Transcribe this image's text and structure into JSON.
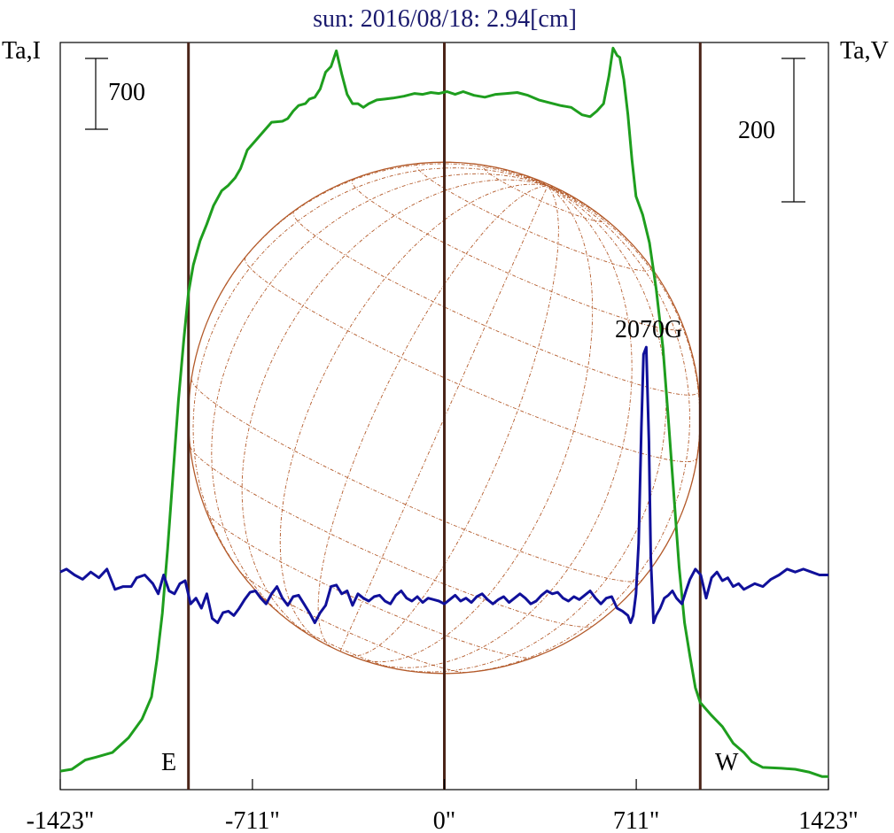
{
  "chart_data": {
    "type": "line",
    "title": "sun: 2016/08/18: 2.94[cm]",
    "left_axis_label": "Ta,I",
    "right_axis_label": "Ta,V",
    "left_scale_bar_label": "700",
    "right_scale_bar_label": "200",
    "x_ticks": [
      {
        "value": -1423,
        "label": "-1423\""
      },
      {
        "value": -711,
        "label": "-711\""
      },
      {
        "value": 0,
        "label": "0\""
      },
      {
        "value": 711,
        "label": "711\""
      },
      {
        "value": 1423,
        "label": "1423\""
      }
    ],
    "xlim": [
      -1423,
      1423
    ],
    "limb_lines": [
      -948,
      0,
      948
    ],
    "limb_labels": {
      "east": "E",
      "west": "W"
    },
    "annotation": {
      "text": "2070G",
      "x": 780
    },
    "solar_disk": {
      "radius_arcsec": 948
    },
    "colors": {
      "intensity": "#1e9e1e",
      "polarization": "#10109a",
      "limb_line": "#4a2418",
      "disk": "#b35a2a",
      "title": "#1a1a6e"
    },
    "series": [
      {
        "key": "I",
        "axis": "left",
        "ylim": [
          0,
          4030
        ],
        "points": [
          [
            -1423,
            100
          ],
          [
            -1380,
            110
          ],
          [
            -1330,
            160
          ],
          [
            -1290,
            175
          ],
          [
            -1230,
            200
          ],
          [
            -1170,
            280
          ],
          [
            -1120,
            380
          ],
          [
            -1085,
            500
          ],
          [
            -1065,
            700
          ],
          [
            -1045,
            950
          ],
          [
            -1025,
            1300
          ],
          [
            -1005,
            1700
          ],
          [
            -985,
            2100
          ],
          [
            -965,
            2430
          ],
          [
            -948,
            2680
          ],
          [
            -930,
            2830
          ],
          [
            -905,
            2960
          ],
          [
            -880,
            3050
          ],
          [
            -855,
            3150
          ],
          [
            -825,
            3230
          ],
          [
            -800,
            3260
          ],
          [
            -775,
            3300
          ],
          [
            -755,
            3350
          ],
          [
            -730,
            3450
          ],
          [
            -700,
            3500
          ],
          [
            -670,
            3550
          ],
          [
            -640,
            3600
          ],
          [
            -600,
            3605
          ],
          [
            -580,
            3620
          ],
          [
            -560,
            3660
          ],
          [
            -540,
            3690
          ],
          [
            -515,
            3700
          ],
          [
            -500,
            3725
          ],
          [
            -480,
            3735
          ],
          [
            -460,
            3780
          ],
          [
            -440,
            3870
          ],
          [
            -420,
            3900
          ],
          [
            -400,
            3985
          ],
          [
            -380,
            3860
          ],
          [
            -360,
            3750
          ],
          [
            -340,
            3700
          ],
          [
            -320,
            3700
          ],
          [
            -300,
            3680
          ],
          [
            -280,
            3700
          ],
          [
            -250,
            3720
          ],
          [
            -220,
            3725
          ],
          [
            -190,
            3730
          ],
          [
            -150,
            3740
          ],
          [
            -110,
            3755
          ],
          [
            -80,
            3750
          ],
          [
            -50,
            3760
          ],
          [
            -20,
            3755
          ],
          [
            10,
            3765
          ],
          [
            40,
            3750
          ],
          [
            70,
            3765
          ],
          [
            110,
            3745
          ],
          [
            150,
            3735
          ],
          [
            190,
            3750
          ],
          [
            230,
            3755
          ],
          [
            270,
            3760
          ],
          [
            310,
            3745
          ],
          [
            350,
            3720
          ],
          [
            390,
            3705
          ],
          [
            430,
            3690
          ],
          [
            470,
            3680
          ],
          [
            510,
            3640
          ],
          [
            540,
            3630
          ],
          [
            565,
            3660
          ],
          [
            590,
            3700
          ],
          [
            610,
            3850
          ],
          [
            625,
            4000
          ],
          [
            640,
            3960
          ],
          [
            650,
            3950
          ],
          [
            665,
            3830
          ],
          [
            680,
            3640
          ],
          [
            695,
            3400
          ],
          [
            710,
            3200
          ],
          [
            735,
            3100
          ],
          [
            760,
            2950
          ],
          [
            785,
            2700
          ],
          [
            810,
            2380
          ],
          [
            830,
            2000
          ],
          [
            850,
            1600
          ],
          [
            870,
            1200
          ],
          [
            890,
            900
          ],
          [
            910,
            720
          ],
          [
            930,
            550
          ],
          [
            948,
            470
          ],
          [
            990,
            400
          ],
          [
            1030,
            340
          ],
          [
            1070,
            250
          ],
          [
            1110,
            200
          ],
          [
            1140,
            150
          ],
          [
            1180,
            120
          ],
          [
            1250,
            115
          ],
          [
            1300,
            110
          ],
          [
            1350,
            95
          ],
          [
            1400,
            70
          ],
          [
            1423,
            70
          ]
        ]
      },
      {
        "key": "V",
        "axis": "right",
        "ylim": [
          -140,
          375
        ],
        "points": [
          [
            -1423,
            10
          ],
          [
            -1400,
            12
          ],
          [
            -1370,
            8
          ],
          [
            -1340,
            5
          ],
          [
            -1310,
            10
          ],
          [
            -1280,
            6
          ],
          [
            -1250,
            12
          ],
          [
            -1220,
            -2
          ],
          [
            -1190,
            0
          ],
          [
            -1160,
            0
          ],
          [
            -1140,
            6
          ],
          [
            -1110,
            8
          ],
          [
            -1080,
            2
          ],
          [
            -1060,
            -5
          ],
          [
            -1040,
            8
          ],
          [
            -1020,
            -3
          ],
          [
            -1000,
            -5
          ],
          [
            -980,
            2
          ],
          [
            -960,
            4
          ],
          [
            -940,
            -12
          ],
          [
            -920,
            -8
          ],
          [
            -900,
            -15
          ],
          [
            -880,
            -5
          ],
          [
            -860,
            -22
          ],
          [
            -840,
            -25
          ],
          [
            -820,
            -18
          ],
          [
            -800,
            -17
          ],
          [
            -780,
            -20
          ],
          [
            -760,
            -15
          ],
          [
            -740,
            -9
          ],
          [
            -720,
            -4
          ],
          [
            -700,
            -3
          ],
          [
            -680,
            -8
          ],
          [
            -660,
            -12
          ],
          [
            -640,
            -5
          ],
          [
            -620,
            0
          ],
          [
            -600,
            -8
          ],
          [
            -580,
            -13
          ],
          [
            -560,
            -7
          ],
          [
            -540,
            -6
          ],
          [
            -520,
            -12
          ],
          [
            -500,
            -18
          ],
          [
            -480,
            -25
          ],
          [
            -460,
            -18
          ],
          [
            -440,
            -13
          ],
          [
            -420,
            0
          ],
          [
            -400,
            1
          ],
          [
            -380,
            -5
          ],
          [
            -360,
            -3
          ],
          [
            -340,
            -13
          ],
          [
            -320,
            -5
          ],
          [
            -300,
            -8
          ],
          [
            -280,
            -10
          ],
          [
            -260,
            -7
          ],
          [
            -240,
            -6
          ],
          [
            -220,
            -10
          ],
          [
            -200,
            -12
          ],
          [
            -180,
            -6
          ],
          [
            -160,
            -3
          ],
          [
            -140,
            -8
          ],
          [
            -120,
            -10
          ],
          [
            -100,
            -7
          ],
          [
            -80,
            -11
          ],
          [
            -60,
            -8
          ],
          [
            -40,
            -9
          ],
          [
            -20,
            -10
          ],
          [
            0,
            -12
          ],
          [
            20,
            -9
          ],
          [
            40,
            -6
          ],
          [
            60,
            -10
          ],
          [
            80,
            -8
          ],
          [
            100,
            -11
          ],
          [
            120,
            -7
          ],
          [
            140,
            -5
          ],
          [
            160,
            -9
          ],
          [
            180,
            -12
          ],
          [
            200,
            -9
          ],
          [
            220,
            -7
          ],
          [
            240,
            -11
          ],
          [
            260,
            -8
          ],
          [
            280,
            -5
          ],
          [
            300,
            -8
          ],
          [
            320,
            -12
          ],
          [
            340,
            -10
          ],
          [
            360,
            -6
          ],
          [
            380,
            -3
          ],
          [
            400,
            -5
          ],
          [
            420,
            -4
          ],
          [
            440,
            -8
          ],
          [
            460,
            -10
          ],
          [
            480,
            -7
          ],
          [
            500,
            -9
          ],
          [
            520,
            -6
          ],
          [
            540,
            -3
          ],
          [
            560,
            -8
          ],
          [
            580,
            -12
          ],
          [
            600,
            -8
          ],
          [
            620,
            -7
          ],
          [
            640,
            -15
          ],
          [
            660,
            -17
          ],
          [
            680,
            -20
          ],
          [
            690,
            -25
          ],
          [
            700,
            -20
          ],
          [
            710,
            -5
          ],
          [
            720,
            30
          ],
          [
            730,
            110
          ],
          [
            738,
            160
          ],
          [
            748,
            165
          ],
          [
            758,
            100
          ],
          [
            765,
            20
          ],
          [
            775,
            -25
          ],
          [
            785,
            -20
          ],
          [
            800,
            -15
          ],
          [
            815,
            -8
          ],
          [
            830,
            -6
          ],
          [
            845,
            -3
          ],
          [
            860,
            -8
          ],
          [
            880,
            -12
          ],
          [
            895,
            -3
          ],
          [
            910,
            5
          ],
          [
            930,
            12
          ],
          [
            950,
            8
          ],
          [
            970,
            -8
          ],
          [
            990,
            6
          ],
          [
            1010,
            10
          ],
          [
            1030,
            4
          ],
          [
            1050,
            6
          ],
          [
            1070,
            0
          ],
          [
            1090,
            2
          ],
          [
            1110,
            -2
          ],
          [
            1130,
            0
          ],
          [
            1150,
            2
          ],
          [
            1180,
            0
          ],
          [
            1210,
            5
          ],
          [
            1240,
            8
          ],
          [
            1270,
            12
          ],
          [
            1300,
            10
          ],
          [
            1330,
            12
          ],
          [
            1360,
            10
          ],
          [
            1390,
            8
          ],
          [
            1423,
            8
          ]
        ]
      }
    ]
  }
}
